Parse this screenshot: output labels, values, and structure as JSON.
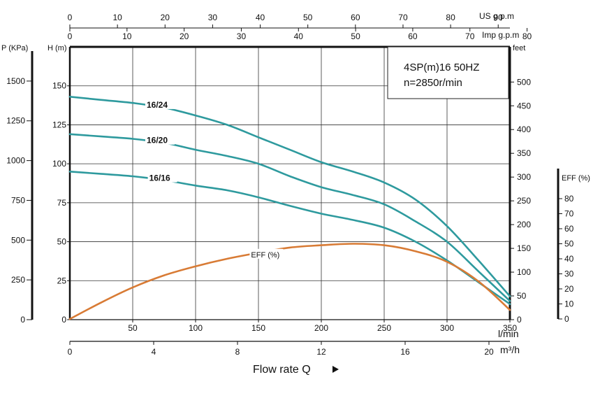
{
  "chart_data": {
    "type": "line",
    "title_lines": [
      "4SP(m)16  50HZ",
      "n=2850r/min"
    ],
    "xlabel": "Flow rate Q",
    "xlim": [
      0,
      350
    ],
    "ylim": [
      0,
      175
    ],
    "grid": true,
    "axes": {
      "x_lpm": {
        "unit": "l/min",
        "ticks": [
          0,
          50,
          100,
          150,
          200,
          250,
          300,
          350
        ],
        "label_from": 50
      },
      "x_m3h": {
        "unit": "m³/h",
        "range": [
          0,
          21
        ],
        "ticks": [
          0,
          4,
          8,
          12,
          16,
          20
        ]
      },
      "x_usgpm": {
        "unit": "US g.p.m",
        "range": [
          0,
          92.46
        ],
        "ticks": [
          0,
          10,
          20,
          30,
          40,
          50,
          60,
          70,
          80,
          90
        ]
      },
      "x_impgpm": {
        "unit": "Imp g.p.m",
        "range": [
          0,
          77
        ],
        "ticks": [
          0,
          10,
          20,
          30,
          40,
          50,
          60,
          70,
          80
        ]
      },
      "y_head_m": {
        "unit": "H (m)",
        "range": [
          0,
          175
        ],
        "ticks": [
          0,
          25,
          50,
          75,
          100,
          125,
          150
        ]
      },
      "y_pressure": {
        "unit": "P (KPa)",
        "range": [
          0,
          1715
        ],
        "ticks": [
          0,
          250,
          500,
          750,
          1000,
          1250,
          1500
        ]
      },
      "y_feet": {
        "unit": "feet",
        "range": [
          0,
          574
        ],
        "ticks": [
          0,
          50,
          100,
          150,
          200,
          250,
          300,
          350,
          400,
          450,
          500
        ]
      },
      "y_eff": {
        "unit": "EFF (%)",
        "range": [
          0,
          100
        ],
        "ticks": [
          0,
          10,
          20,
          30,
          40,
          50,
          60,
          70,
          80
        ]
      }
    },
    "series": [
      {
        "name": "16/24",
        "color": "#2e9a9e",
        "x": [
          0,
          25,
          50,
          75,
          100,
          125,
          150,
          175,
          200,
          225,
          250,
          275,
          300,
          325,
          350
        ],
        "y": [
          143,
          141,
          139,
          136,
          131,
          125,
          117,
          109,
          101,
          95,
          88,
          77,
          60,
          38,
          15
        ]
      },
      {
        "name": "16/20",
        "color": "#2e9a9e",
        "x": [
          0,
          25,
          50,
          75,
          100,
          125,
          150,
          175,
          200,
          225,
          250,
          275,
          300,
          325,
          350
        ],
        "y": [
          119,
          117.5,
          116,
          113.5,
          109,
          105,
          100,
          92,
          85,
          80,
          74,
          63,
          50,
          31,
          12
        ]
      },
      {
        "name": "16/16",
        "color": "#2e9a9e",
        "x": [
          0,
          25,
          50,
          75,
          100,
          125,
          150,
          175,
          200,
          225,
          250,
          275,
          300,
          325,
          350
        ],
        "y": [
          95,
          93.5,
          92,
          89.5,
          86,
          83,
          78.5,
          73,
          68,
          64,
          59,
          50,
          38,
          24,
          10
        ]
      },
      {
        "name": "EFF (%)",
        "color": "#d87b35",
        "axis": "y_eff",
        "x": [
          0,
          25,
          50,
          75,
          100,
          125,
          150,
          175,
          200,
          225,
          250,
          275,
          300,
          325,
          350
        ],
        "y": [
          0,
          11,
          21,
          29,
          35,
          40,
          44,
          47.5,
          49,
          50,
          49,
          45,
          38,
          25,
          6
        ]
      }
    ]
  }
}
